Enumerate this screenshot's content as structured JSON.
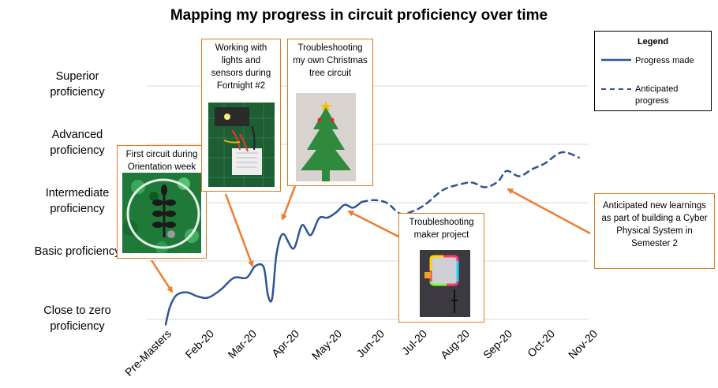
{
  "chart_data": {
    "type": "line",
    "title": "Mapping my progress in circuit proficiency over time",
    "categories": [
      "Pre-Masters",
      "Feb-20",
      "Mar-20",
      "Apr-20",
      "May-20",
      "Jun-20",
      "Jul-20",
      "Aug-20",
      "Sep-20",
      "Oct-20",
      "Nov-20"
    ],
    "y_levels": [
      "Close to zero proficiency",
      "Basic proficiency",
      "Intermediate proficiency",
      "Advanced proficiency",
      "Superior proficiency"
    ],
    "ylim": [
      0,
      4.4
    ],
    "series": [
      {
        "name": "Progress made",
        "style": "solid",
        "color": "#2f5597",
        "x": [
          0,
          0.1,
          0.25,
          0.5,
          0.75,
          1,
          1.3,
          1.6,
          1.9,
          2.1,
          2.3,
          2.4,
          2.5,
          2.6,
          2.75,
          3.0,
          3.2,
          3.4,
          3.6,
          3.8,
          4.0,
          4.2,
          4.4,
          4.6
        ],
        "y": [
          -0.1,
          0.2,
          0.4,
          0.45,
          0.38,
          0.36,
          0.5,
          0.7,
          0.7,
          0.9,
          0.88,
          0.4,
          0.35,
          1.1,
          1.45,
          1.2,
          1.6,
          1.43,
          1.72,
          1.73,
          1.82,
          1.95,
          1.9,
          2.0
        ]
      },
      {
        "name": "Anticipated progress",
        "style": "dashed",
        "color": "#2f5597",
        "x": [
          4.6,
          4.9,
          5.2,
          5.5,
          5.8,
          6.1,
          6.5,
          6.9,
          7.2,
          7.5,
          7.8,
          8.0,
          8.3,
          8.6,
          8.9,
          9.3,
          9.7
        ],
        "y": [
          2.0,
          2.03,
          1.98,
          1.8,
          1.84,
          1.96,
          2.2,
          2.3,
          2.33,
          2.25,
          2.35,
          2.53,
          2.44,
          2.56,
          2.66,
          2.85,
          2.76
        ]
      }
    ],
    "grid": true,
    "legend_position": "top-right"
  },
  "legend": {
    "title": "Legend",
    "solid_label": "Progress made",
    "dashed_label": "Anticipated progress"
  },
  "annotations": {
    "first_circuit": "First circuit during Orientation week",
    "fortnight": "Working with lights and sensors during Fortnight #2",
    "christmas": "Troubleshooting my own Christmas tree circuit",
    "maker": "Troubleshooting maker project",
    "anticipated": "Anticipated new learnings as part of building a Cyber Physical System in Semester 2"
  },
  "colors": {
    "line": "#2f5597",
    "arrow": "#ed7d31",
    "box_border": "#e07b20",
    "grid": "#d9d9d9"
  }
}
